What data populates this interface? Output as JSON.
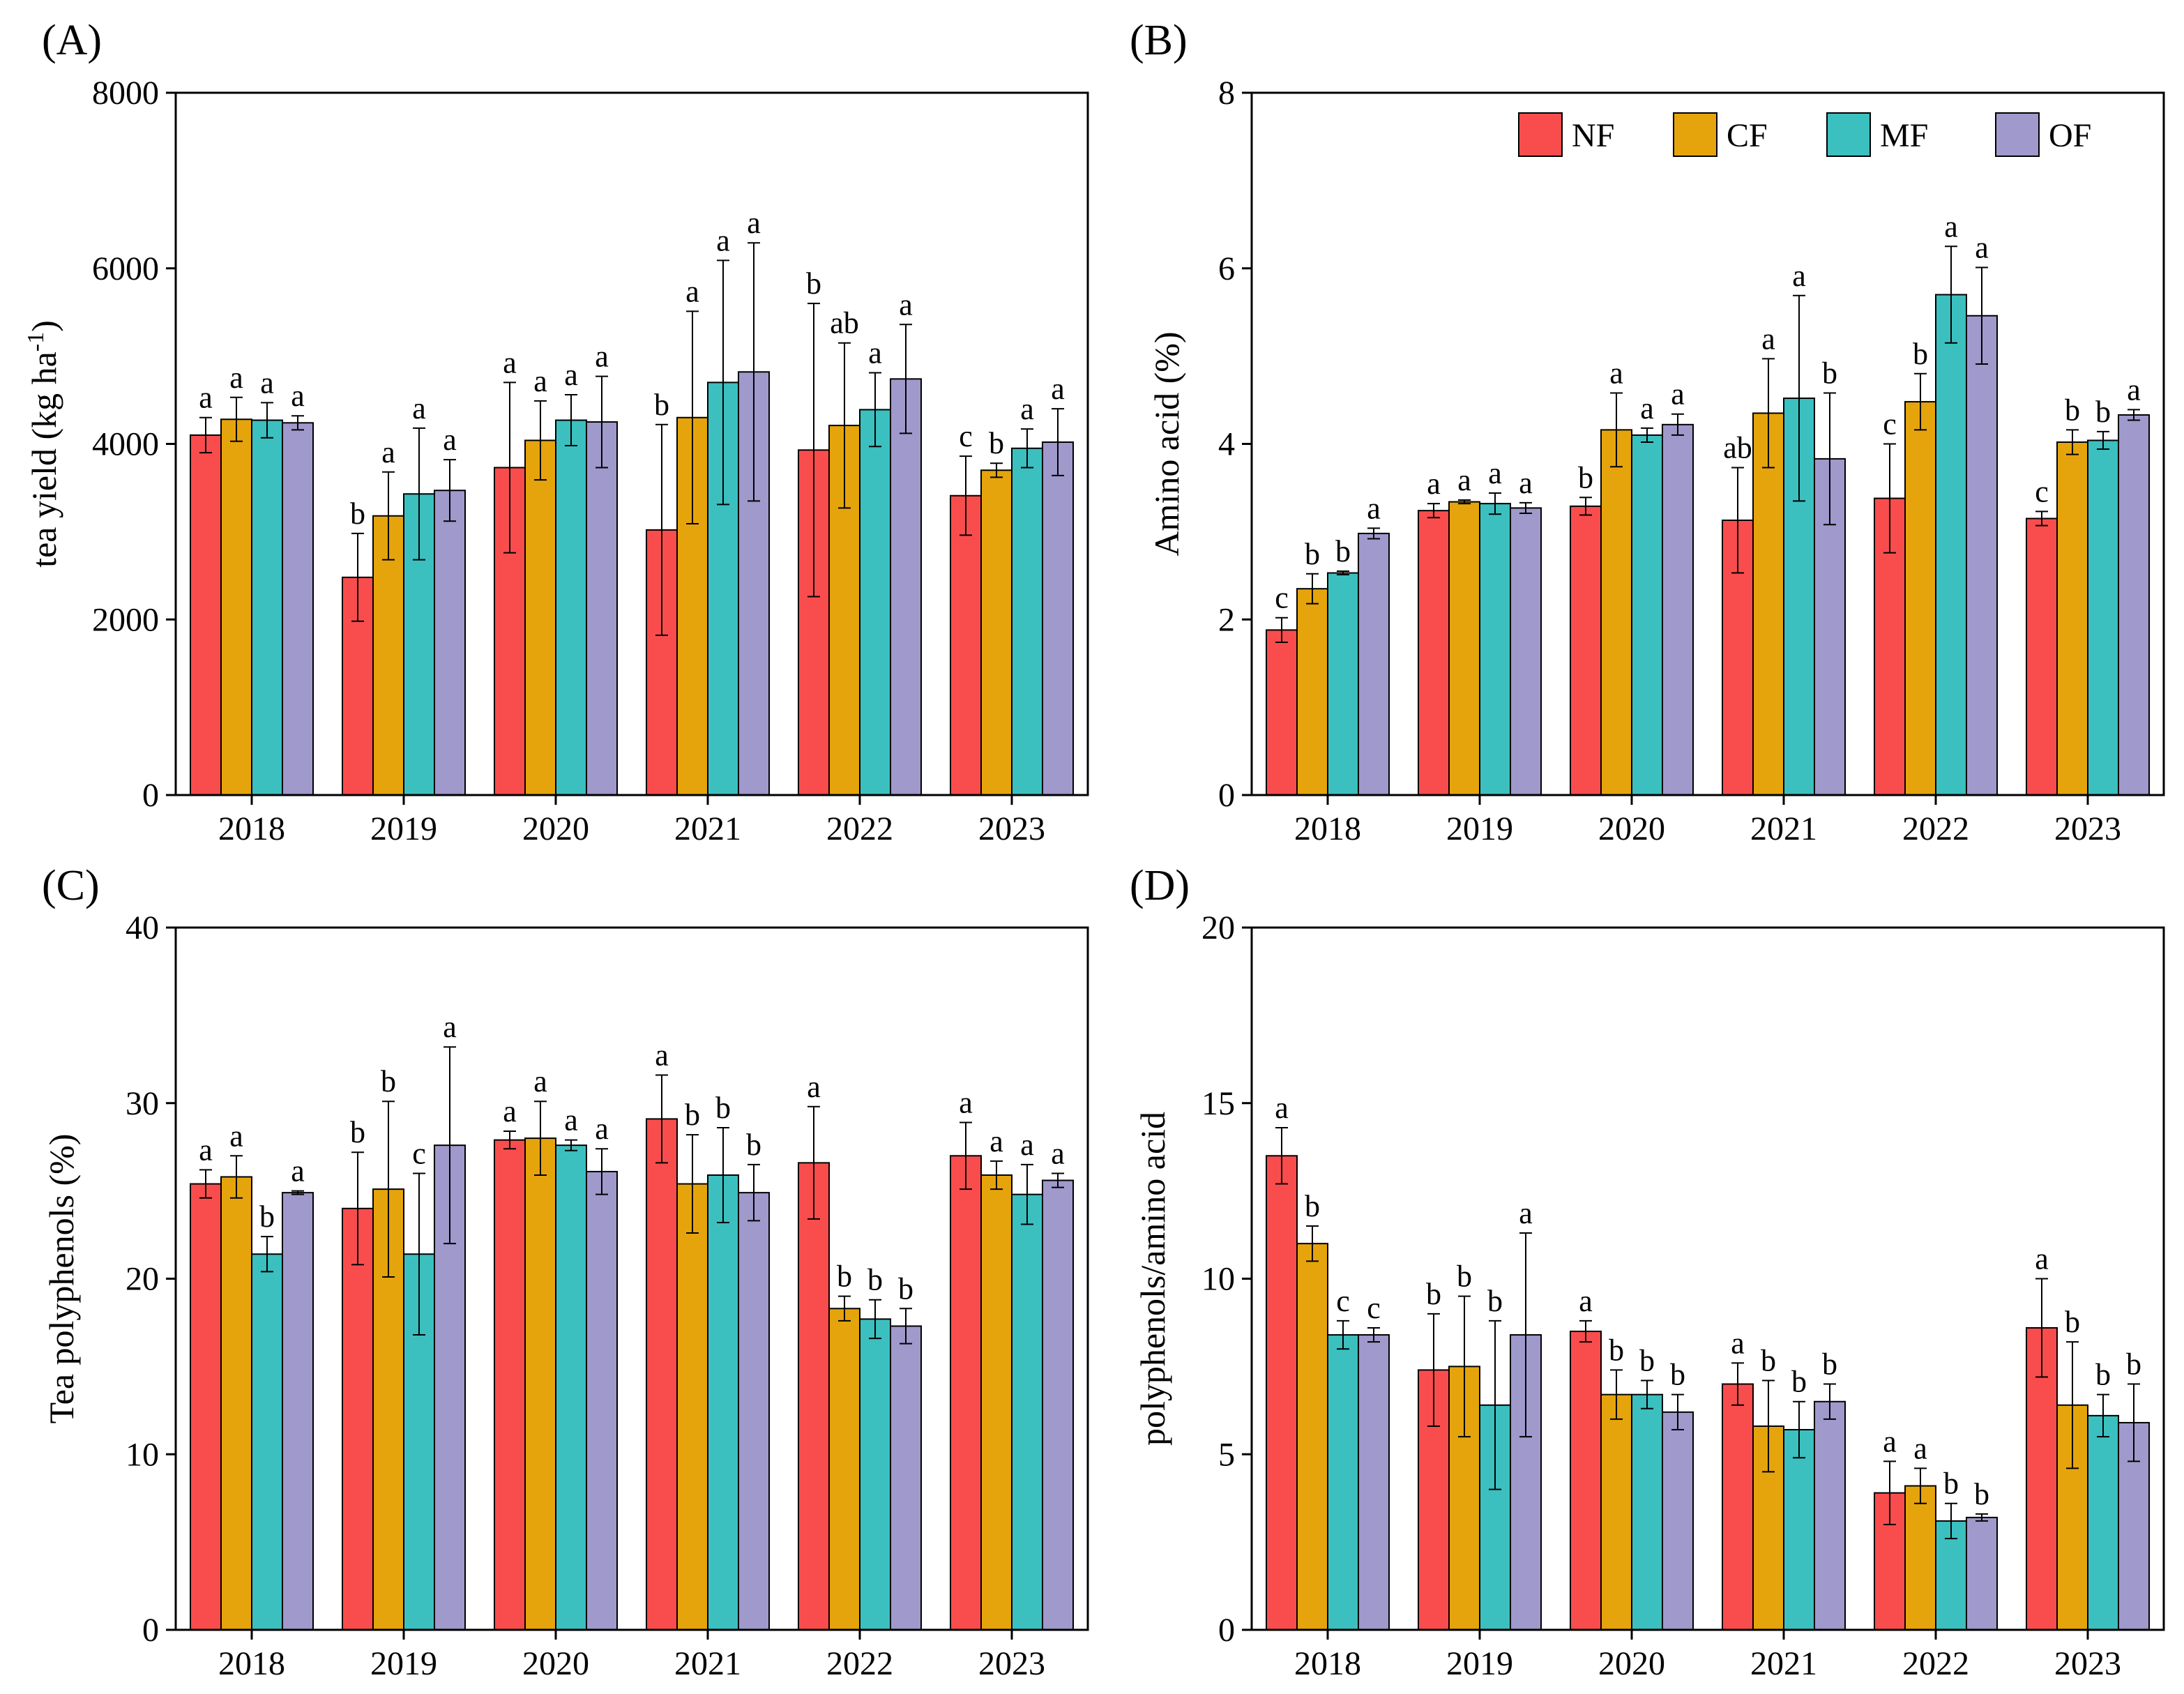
{
  "colors": {
    "NF": "#F94D4D",
    "CF": "#E6A40C",
    "MF": "#3CBFBF",
    "OF": "#9F99CC"
  },
  "legend": [
    "NF",
    "CF",
    "MF",
    "OF"
  ],
  "chart_data": [
    {
      "type": "bar",
      "panel": "(A)",
      "title": "",
      "xlabel": "",
      "ylabel": "tea yield (kg ha",
      "ylabel_sup": "-1",
      "ylabel_end": ")",
      "ylim": [
        0,
        8000
      ],
      "yticks": [
        0,
        2000,
        4000,
        6000,
        8000
      ],
      "categories": [
        "2018",
        "2019",
        "2020",
        "2021",
        "2022",
        "2023"
      ],
      "series": [
        {
          "name": "NF",
          "values": [
            4100,
            2480,
            3730,
            3020,
            3930,
            3410
          ],
          "errors": [
            200,
            500,
            970,
            1200,
            1670,
            450
          ],
          "labels": [
            "a",
            "b",
            "a",
            "b",
            "b",
            "c"
          ]
        },
        {
          "name": "CF",
          "values": [
            4280,
            3180,
            4040,
            4300,
            4210,
            3700
          ],
          "errors": [
            250,
            500,
            450,
            1210,
            940,
            80
          ],
          "labels": [
            "a",
            "a",
            "a",
            "a",
            "ab",
            "b"
          ]
        },
        {
          "name": "MF",
          "values": [
            4270,
            3430,
            4270,
            4700,
            4390,
            3950
          ],
          "errors": [
            200,
            750,
            290,
            1390,
            420,
            220
          ],
          "labels": [
            "a",
            "a",
            "a",
            "a",
            "a",
            "a"
          ]
        },
        {
          "name": "OF",
          "values": [
            4240,
            3470,
            4250,
            4820,
            4740,
            4020
          ],
          "errors": [
            80,
            350,
            520,
            1470,
            620,
            380
          ],
          "labels": [
            "a",
            "a",
            "a",
            "a",
            "a",
            "a"
          ]
        }
      ]
    },
    {
      "type": "bar",
      "panel": "(B)",
      "title": "",
      "xlabel": "",
      "ylabel": "Amino acid (%)",
      "ylim": [
        0,
        8
      ],
      "yticks": [
        0,
        2,
        4,
        6,
        8
      ],
      "categories": [
        "2018",
        "2019",
        "2020",
        "2021",
        "2022",
        "2023"
      ],
      "series": [
        {
          "name": "NF",
          "values": [
            1.88,
            3.24,
            3.29,
            3.13,
            3.38,
            3.15
          ],
          "errors": [
            0.14,
            0.08,
            0.1,
            0.6,
            0.62,
            0.08
          ],
          "labels": [
            "c",
            "a",
            "b",
            "ab",
            "c",
            "c"
          ]
        },
        {
          "name": "CF",
          "values": [
            2.35,
            3.34,
            4.16,
            4.35,
            4.48,
            4.02
          ],
          "errors": [
            0.17,
            0.02,
            0.42,
            0.62,
            0.32,
            0.14
          ],
          "labels": [
            "b",
            "a",
            "a",
            "a",
            "b",
            "b"
          ]
        },
        {
          "name": "MF",
          "values": [
            2.53,
            3.32,
            4.1,
            4.52,
            5.7,
            4.04
          ],
          "errors": [
            0.02,
            0.12,
            0.08,
            1.17,
            0.55,
            0.1
          ],
          "labels": [
            "b",
            "a",
            "a",
            "a",
            "a",
            "b"
          ]
        },
        {
          "name": "OF",
          "values": [
            2.98,
            3.27,
            4.22,
            3.83,
            5.46,
            4.33
          ],
          "errors": [
            0.06,
            0.06,
            0.12,
            0.75,
            0.55,
            0.06
          ],
          "labels": [
            "a",
            "a",
            "a",
            "b",
            "a",
            "a"
          ]
        }
      ]
    },
    {
      "type": "bar",
      "panel": "(C)",
      "title": "",
      "xlabel": "",
      "ylabel": "Tea polyphenols (%)",
      "ylim": [
        0,
        40
      ],
      "yticks": [
        0,
        10,
        20,
        30,
        40
      ],
      "categories": [
        "2018",
        "2019",
        "2020",
        "2021",
        "2022",
        "2023"
      ],
      "series": [
        {
          "name": "NF",
          "values": [
            25.4,
            24.0,
            27.9,
            29.1,
            26.6,
            27.0
          ],
          "errors": [
            0.8,
            3.2,
            0.5,
            2.5,
            3.2,
            1.9
          ],
          "labels": [
            "a",
            "b",
            "a",
            "a",
            "a",
            "a"
          ]
        },
        {
          "name": "CF",
          "values": [
            25.8,
            25.1,
            28.0,
            25.4,
            18.3,
            25.9
          ],
          "errors": [
            1.2,
            5.0,
            2.1,
            2.8,
            0.7,
            0.8
          ],
          "labels": [
            "a",
            "b",
            "a",
            "b",
            "b",
            "a"
          ]
        },
        {
          "name": "MF",
          "values": [
            21.4,
            21.4,
            27.6,
            25.9,
            17.7,
            24.8
          ],
          "errors": [
            1.0,
            4.6,
            0.3,
            2.7,
            1.1,
            1.7
          ],
          "labels": [
            "b",
            "c",
            "a",
            "b",
            "b",
            "a"
          ]
        },
        {
          "name": "OF",
          "values": [
            24.9,
            27.6,
            26.1,
            24.9,
            17.3,
            25.6
          ],
          "errors": [
            0.1,
            5.6,
            1.3,
            1.6,
            1.0,
            0.4
          ],
          "labels": [
            "a",
            "a",
            "a",
            "b",
            "b",
            "a"
          ]
        }
      ]
    },
    {
      "type": "bar",
      "panel": "(D)",
      "title": "",
      "xlabel": "",
      "ylabel": "polyphenols/amino acid",
      "ylim": [
        0,
        20
      ],
      "yticks": [
        0,
        5,
        10,
        15,
        20
      ],
      "categories": [
        "2018",
        "2019",
        "2020",
        "2021",
        "2022",
        "2023"
      ],
      "series": [
        {
          "name": "NF",
          "values": [
            13.5,
            7.4,
            8.5,
            7.0,
            3.9,
            8.6
          ],
          "errors": [
            0.8,
            1.6,
            0.3,
            0.6,
            0.9,
            1.4
          ],
          "labels": [
            "a",
            "b",
            "a",
            "a",
            "a",
            "a"
          ]
        },
        {
          "name": "CF",
          "values": [
            11.0,
            7.5,
            6.7,
            5.8,
            4.1,
            6.4
          ],
          "errors": [
            0.5,
            2.0,
            0.7,
            1.3,
            0.5,
            1.8
          ],
          "labels": [
            "b",
            "b",
            "b",
            "b",
            "a",
            "b"
          ]
        },
        {
          "name": "MF",
          "values": [
            8.4,
            6.4,
            6.7,
            5.7,
            3.1,
            6.1
          ],
          "errors": [
            0.4,
            2.4,
            0.4,
            0.8,
            0.5,
            0.6
          ],
          "labels": [
            "c",
            "b",
            "b",
            "b",
            "b",
            "b"
          ]
        },
        {
          "name": "OF",
          "values": [
            8.4,
            8.4,
            6.2,
            6.5,
            3.2,
            5.9
          ],
          "errors": [
            0.2,
            2.9,
            0.5,
            0.5,
            0.1,
            1.1
          ],
          "labels": [
            "c",
            "a",
            "b",
            "b",
            "b",
            "b"
          ]
        }
      ]
    }
  ]
}
